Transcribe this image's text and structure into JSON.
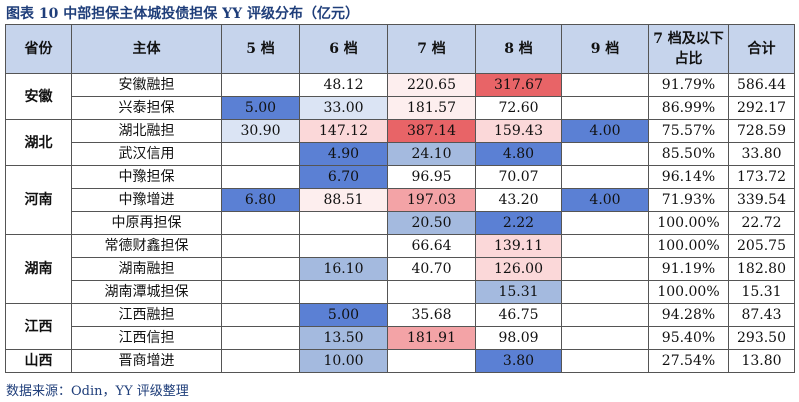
{
  "title": "图表 10 中部担保主体城投债担保 YY 评级分布（亿元）",
  "watermark": "",
  "columns": [
    "省份",
    "主体",
    "5 档",
    "6 档",
    "7 档",
    "8 档",
    "9 档",
    "7 档及以下占比",
    "合计"
  ],
  "colors": {
    "header": "#c6d4ec",
    "blue_strong": "#5b80d4",
    "blue_mid": "#a4badf",
    "blue_light": "#dbe4f4",
    "red_strong": "#e86467",
    "red_mid": "#f3a3a6",
    "red_light": "#fbd8d9",
    "pink_faint": "#fdeeee"
  },
  "groups": [
    {
      "province": "安徽",
      "rows": [
        {
          "name": "安徽融担",
          "c5": "",
          "c6": "48.12",
          "c7": "220.65",
          "c8": "317.67",
          "c9": "",
          "ratio": "91.79%",
          "total": "586.44"
        },
        {
          "name": "兴泰担保",
          "c5": "5.00",
          "c6": "33.00",
          "c7": "181.57",
          "c8": "72.60",
          "c9": "",
          "ratio": "86.99%",
          "total": "292.17"
        }
      ]
    },
    {
      "province": "湖北",
      "rows": [
        {
          "name": "湖北融担",
          "c5": "30.90",
          "c6": "147.12",
          "c7": "387.14",
          "c8": "159.43",
          "c9": "4.00",
          "ratio": "75.57%",
          "total": "728.59"
        },
        {
          "name": "武汉信用",
          "c5": "",
          "c6": "4.90",
          "c7": "24.10",
          "c8": "4.80",
          "c9": "",
          "ratio": "85.50%",
          "total": "33.80"
        }
      ]
    },
    {
      "province": "河南",
      "rows": [
        {
          "name": "中豫担保",
          "c5": "",
          "c6": "6.70",
          "c7": "96.95",
          "c8": "70.07",
          "c9": "",
          "ratio": "96.14%",
          "total": "173.72"
        },
        {
          "name": "中豫增进",
          "c5": "6.80",
          "c6": "88.51",
          "c7": "197.03",
          "c8": "43.20",
          "c9": "4.00",
          "ratio": "71.93%",
          "total": "339.54"
        },
        {
          "name": "中原再担保",
          "c5": "",
          "c6": "",
          "c7": "20.50",
          "c8": "2.22",
          "c9": "",
          "ratio": "100.00%",
          "total": "22.72"
        }
      ]
    },
    {
      "province": "湖南",
      "rows": [
        {
          "name": "常德财鑫担保",
          "c5": "",
          "c6": "",
          "c7": "66.64",
          "c8": "139.11",
          "c9": "",
          "ratio": "100.00%",
          "total": "205.75"
        },
        {
          "name": "湖南融担",
          "c5": "",
          "c6": "16.10",
          "c7": "40.70",
          "c8": "126.00",
          "c9": "",
          "ratio": "91.19%",
          "total": "182.80"
        },
        {
          "name": "湖南潭城担保",
          "c5": "",
          "c6": "",
          "c7": "",
          "c8": "15.31",
          "c9": "",
          "ratio": "100.00%",
          "total": "15.31"
        }
      ]
    },
    {
      "province": "江西",
      "rows": [
        {
          "name": "江西融担",
          "c5": "",
          "c6": "5.00",
          "c7": "35.68",
          "c8": "46.75",
          "c9": "",
          "ratio": "94.28%",
          "total": "87.43"
        },
        {
          "name": "江西信担",
          "c5": "",
          "c6": "13.50",
          "c7": "181.91",
          "c8": "98.09",
          "c9": "",
          "ratio": "95.40%",
          "total": "293.50"
        }
      ]
    },
    {
      "province": "山西",
      "rows": [
        {
          "name": "晋商增进",
          "c5": "",
          "c6": "10.00",
          "c7": "",
          "c8": "3.80",
          "c9": "",
          "ratio": "27.54%",
          "total": "13.80"
        }
      ]
    }
  ],
  "cell_fills": [
    [
      "",
      "",
      "pink_faint",
      "red_strong",
      "",
      "",
      ""
    ],
    [
      "blue_strong",
      "blue_light",
      "pink_faint",
      "",
      "",
      "",
      ""
    ],
    [
      "blue_light",
      "red_light",
      "red_strong",
      "red_light",
      "blue_strong",
      "",
      ""
    ],
    [
      "",
      "blue_strong",
      "blue_mid",
      "blue_strong",
      "",
      "",
      ""
    ],
    [
      "",
      "blue_strong",
      "",
      "",
      "",
      "",
      ""
    ],
    [
      "blue_strong",
      "pink_faint",
      "red_mid",
      "",
      "blue_strong",
      "",
      ""
    ],
    [
      "",
      "",
      "blue_mid",
      "blue_strong",
      "",
      "",
      ""
    ],
    [
      "",
      "",
      "",
      "red_light",
      "",
      "",
      ""
    ],
    [
      "",
      "blue_mid",
      "",
      "red_light",
      "",
      "",
      ""
    ],
    [
      "",
      "",
      "",
      "blue_mid",
      "",
      "",
      ""
    ],
    [
      "",
      "blue_strong",
      "",
      "",
      "",
      "",
      ""
    ],
    [
      "",
      "blue_mid",
      "red_mid",
      "",
      "",
      "",
      ""
    ],
    [
      "",
      "blue_mid",
      "",
      "blue_strong",
      "",
      "",
      ""
    ]
  ],
  "footer": "数据来源：Odin，YY 评级整理"
}
